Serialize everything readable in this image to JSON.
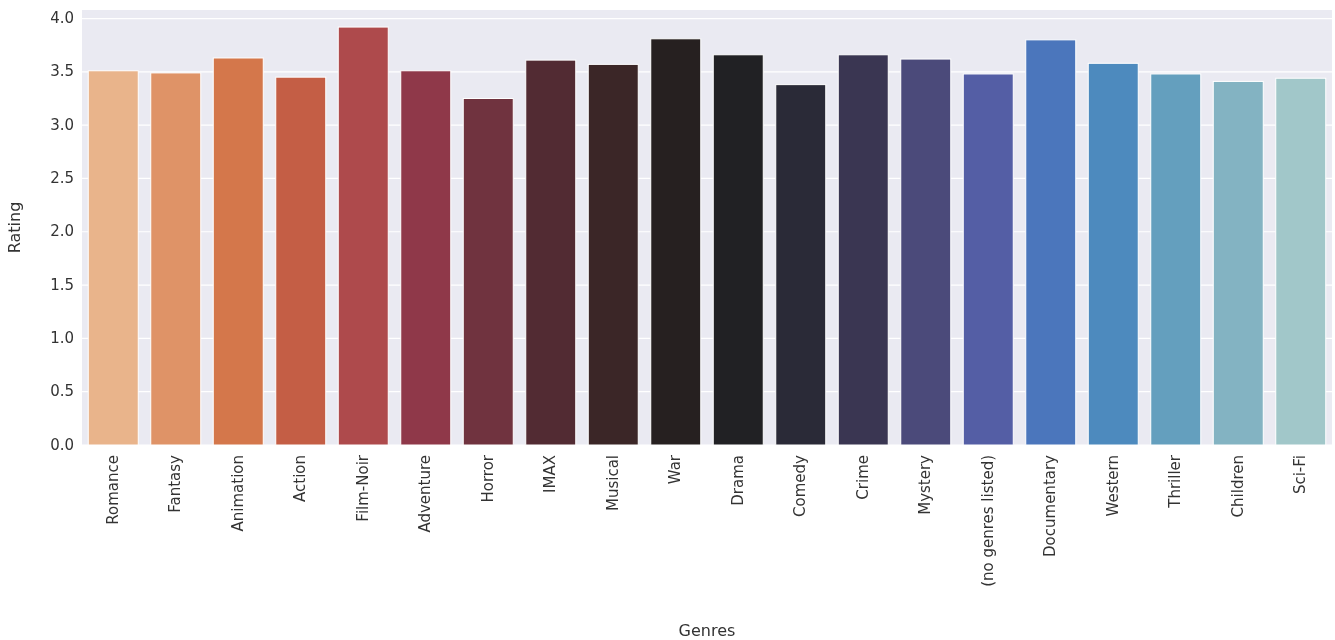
{
  "chart_data": {
    "type": "bar",
    "xlabel": "Genres",
    "ylabel": "Rating",
    "categories": [
      "Romance",
      "Fantasy",
      "Animation",
      "Action",
      "Film-Noir",
      "Adventure",
      "Horror",
      "IMAX",
      "Musical",
      "War",
      "Drama",
      "Comedy",
      "Crime",
      "Mystery",
      "(no genres listed)",
      "Documentary",
      "Western",
      "Thriller",
      "Children",
      "Sci-Fi"
    ],
    "values": [
      3.51,
      3.49,
      3.63,
      3.45,
      3.92,
      3.51,
      3.25,
      3.61,
      3.57,
      3.81,
      3.66,
      3.38,
      3.66,
      3.62,
      3.48,
      3.8,
      3.58,
      3.48,
      3.41,
      3.44
    ],
    "colors": [
      "#e9b48b",
      "#df9367",
      "#d4774b",
      "#c45e45",
      "#ae4a4c",
      "#8f3849",
      "#70333f",
      "#522b33",
      "#3b2627",
      "#262020",
      "#212124",
      "#2a2a37",
      "#3a3652",
      "#4b4a7a",
      "#545ea5",
      "#4b76bc",
      "#4d8abe",
      "#649fbe",
      "#83b3c2",
      "#a1c7c9"
    ],
    "ylim": [
      0,
      4.08
    ],
    "yticks": [
      {
        "value": 0,
        "label": "0.0"
      },
      0.5,
      {
        "value": 1,
        "label": "1.0"
      },
      1.5,
      {
        "value": 2,
        "label": "2.0"
      },
      2.5,
      {
        "value": 3,
        "label": "3.0"
      },
      3.5,
      {
        "value": 4,
        "label": "4.0"
      }
    ],
    "grid": "y"
  }
}
